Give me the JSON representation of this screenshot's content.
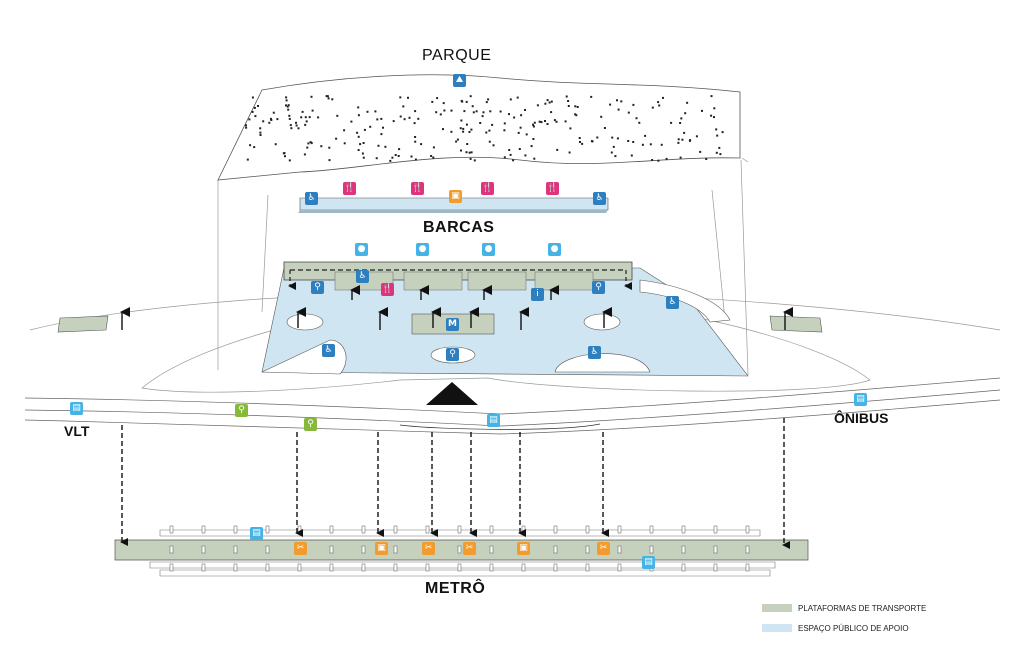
{
  "labels": {
    "parque": "PARQUE",
    "barcas": "BARCAS",
    "vlt": "VLT",
    "onibus": "ÔNIBUS",
    "metro": "METRÔ"
  },
  "legend": [
    {
      "label": "PLATAFORMAS DE TRANSPORTE",
      "color": "#c5d0bd"
    },
    {
      "label": "ESPAÇO PÚBLICO DE APOIO",
      "color": "#cfe6f2"
    }
  ],
  "colors": {
    "platform": "#c5d0bd",
    "public_space": "#cfe6f2",
    "icon_blue": "#2e7fc0",
    "icon_light_blue": "#45b3e6",
    "icon_pink": "#e0337e",
    "icon_orange": "#f29b2e",
    "icon_green": "#86b83a",
    "arrow": "#111111"
  },
  "icons": {
    "park_walk": "hiker-icon",
    "restroom": "restroom-icon",
    "restaurant": "restaurant-icon",
    "shop": "shop-icon",
    "person": "person-icon",
    "accessibility": "wheelchair-icon",
    "metro": "metro-icon",
    "tram": "tram-icon",
    "bus": "bus-icon",
    "bike": "bike-icon",
    "food": "food-icon",
    "ticket": "ticket-icon",
    "info": "info-icon"
  }
}
